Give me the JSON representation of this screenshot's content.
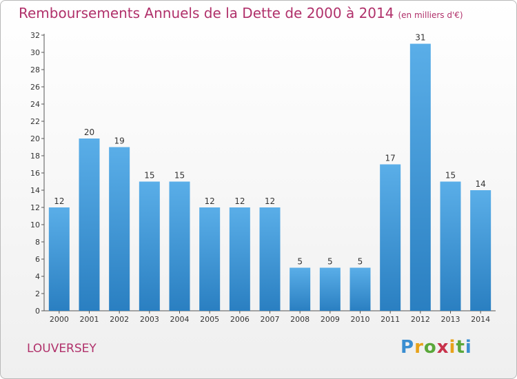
{
  "title": "Remboursements Annuels de la Dette de 2000 à 2014",
  "unit_label": "(en milliers d'€)",
  "commune": "LOUVERSEY",
  "logo": {
    "text": "Proxiti"
  },
  "colors": {
    "title": "#b0306a",
    "bar_top": "#5aaee8",
    "bar_bottom": "#2a7fc1"
  },
  "chart_data": {
    "type": "bar",
    "title": "Remboursements Annuels de la Dette de 2000 à 2014",
    "xlabel": "",
    "ylabel": "",
    "categories": [
      "2000",
      "2001",
      "2002",
      "2003",
      "2004",
      "2005",
      "2006",
      "2007",
      "2008",
      "2009",
      "2010",
      "2011",
      "2012",
      "2013",
      "2014"
    ],
    "values": [
      12,
      20,
      19,
      15,
      15,
      12,
      12,
      12,
      5,
      5,
      5,
      17,
      31,
      15,
      14
    ],
    "ylim": [
      0,
      32
    ],
    "yticks": [
      0,
      2,
      4,
      6,
      8,
      10,
      12,
      14,
      16,
      18,
      20,
      22,
      24,
      26,
      28,
      30,
      32
    ],
    "grid": false
  }
}
